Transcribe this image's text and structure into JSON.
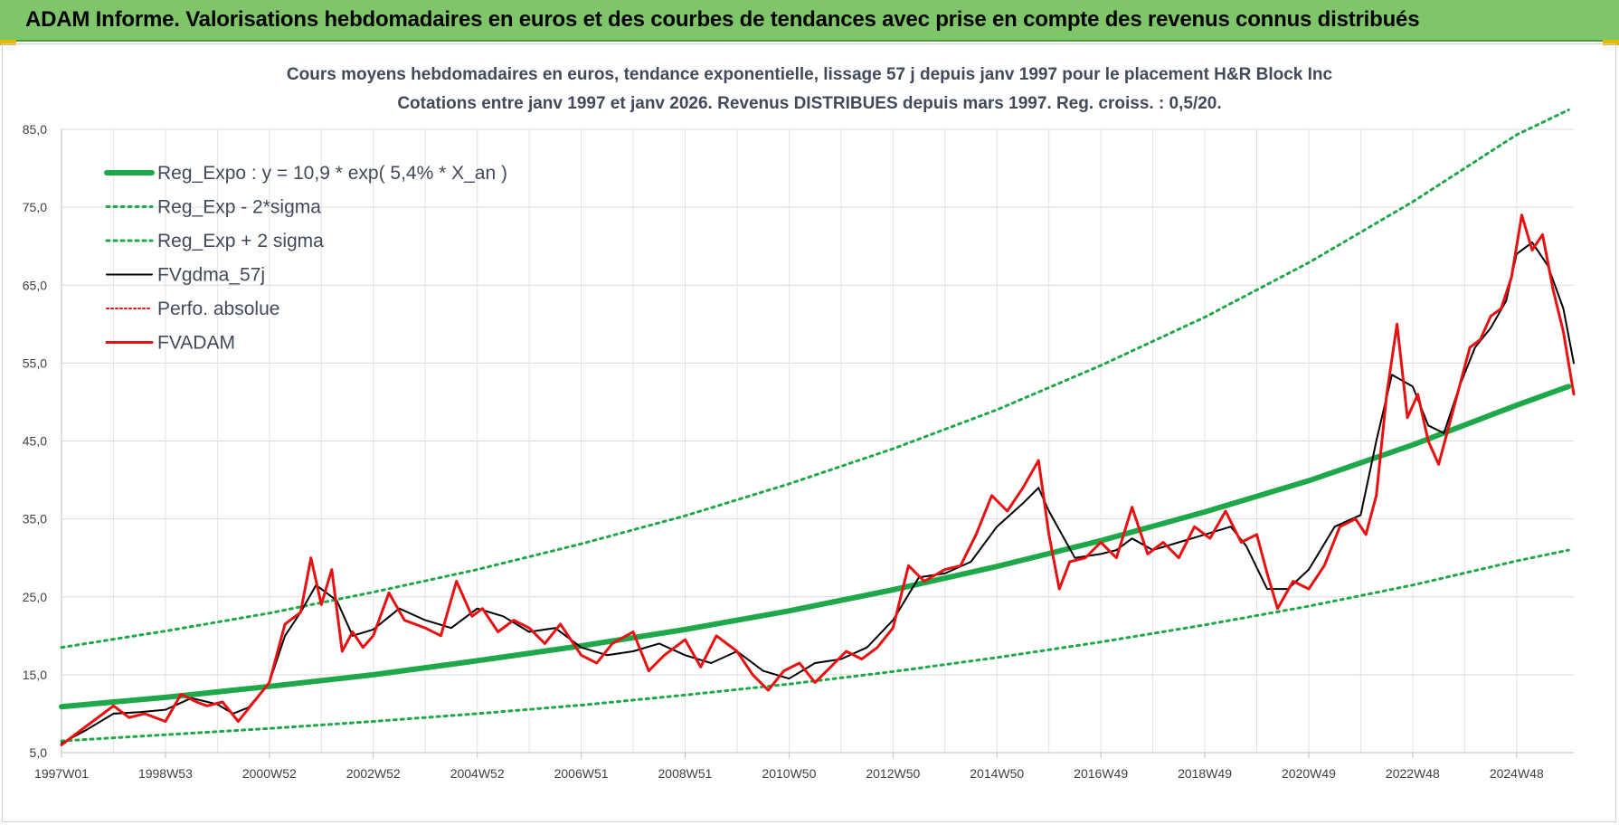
{
  "banner": {
    "title": "ADAM Informe. Valorisations hebdomadaires en euros et des courbes de tendances avec prise en compte des revenus connus distribués"
  },
  "chart_data": {
    "type": "line",
    "title": "Cours moyens hebdomadaires en euros, tendance exponentielle, lissage 57 j depuis janv 1997  pour le placement H&R Block Inc",
    "subtitle": "Cotations entre janv 1997 et janv 2026. Revenus DISTRIBUES depuis mars 1997.  Reg. croiss. : 0,5/20.",
    "xlabel": "",
    "ylabel": "",
    "xlim": [
      1997.0,
      2026.1
    ],
    "ylim": [
      5.0,
      85.0
    ],
    "grid": true,
    "legend_position": "top-left",
    "y_ticks": [
      "5,0",
      "15,0",
      "25,0",
      "35,0",
      "45,0",
      "55,0",
      "65,0",
      "75,0",
      "85,0"
    ],
    "x_ticks": [
      {
        "label": "1997W01",
        "x": 1997.0
      },
      {
        "label": "1998W53",
        "x": 1999.0
      },
      {
        "label": "2000W52",
        "x": 2001.0
      },
      {
        "label": "2002W52",
        "x": 2003.0
      },
      {
        "label": "2004W52",
        "x": 2005.0
      },
      {
        "label": "2006W51",
        "x": 2007.0
      },
      {
        "label": "2008W51",
        "x": 2009.0
      },
      {
        "label": "2010W50",
        "x": 2011.0
      },
      {
        "label": "2012W50",
        "x": 2013.0
      },
      {
        "label": "2014W50",
        "x": 2015.0
      },
      {
        "label": "2016W49",
        "x": 2017.0
      },
      {
        "label": "2018W49",
        "x": 2019.0
      },
      {
        "label": "2020W49",
        "x": 2021.0
      },
      {
        "label": "2022W48",
        "x": 2023.0
      },
      {
        "label": "2024W48",
        "x": 2025.0
      }
    ],
    "series": [
      {
        "name": "Reg_Expo : y = 10,9 * exp( 5,4% *  X_an )",
        "color": "#1fa84a",
        "style": "solid",
        "width": 6,
        "x": [
          1997.0,
          1999.0,
          2001.0,
          2003.0,
          2005.0,
          2007.0,
          2009.0,
          2011.0,
          2013.0,
          2015.0,
          2017.0,
          2019.0,
          2021.0,
          2023.0,
          2025.0,
          2026.0
        ],
        "values": [
          10.9,
          12.1,
          13.5,
          15.0,
          16.8,
          18.7,
          20.8,
          23.2,
          25.9,
          28.9,
          32.2,
          35.9,
          39.9,
          44.5,
          49.6,
          52.0
        ]
      },
      {
        "name": "Reg_Exp - 2*sigma",
        "color": "#1fa84a",
        "style": "dotted",
        "width": 3,
        "x": [
          1997.0,
          1999.0,
          2001.0,
          2003.0,
          2005.0,
          2007.0,
          2009.0,
          2011.0,
          2013.0,
          2015.0,
          2017.0,
          2019.0,
          2021.0,
          2023.0,
          2025.0,
          2026.0
        ],
        "values": [
          6.5,
          7.3,
          8.1,
          9.0,
          10.0,
          11.1,
          12.4,
          13.8,
          15.4,
          17.2,
          19.2,
          21.4,
          23.8,
          26.5,
          29.6,
          31.0
        ]
      },
      {
        "name": "Reg_Exp + 2 sigma",
        "color": "#1fa84a",
        "style": "dotted",
        "width": 3,
        "x": [
          1997.0,
          1999.0,
          2001.0,
          2003.0,
          2005.0,
          2007.0,
          2009.0,
          2011.0,
          2013.0,
          2015.0,
          2017.0,
          2019.0,
          2021.0,
          2023.0,
          2025.0,
          2026.0
        ],
        "values": [
          18.5,
          20.6,
          22.9,
          25.6,
          28.5,
          31.8,
          35.4,
          39.5,
          44.0,
          49.0,
          54.7,
          60.9,
          67.9,
          75.7,
          84.3,
          87.5
        ]
      },
      {
        "name": "FVgdma_57j",
        "color": "#000000",
        "style": "solid",
        "width": 2,
        "x": [
          1997.0,
          1997.5,
          1998.0,
          1998.5,
          1999.0,
          1999.5,
          2000.0,
          2000.3,
          2000.6,
          2001.0,
          2001.3,
          2001.6,
          2001.9,
          2002.3,
          2002.6,
          2003.0,
          2003.5,
          2004.0,
          2004.5,
          2005.0,
          2005.5,
          2006.0,
          2006.5,
          2007.0,
          2007.5,
          2008.0,
          2008.5,
          2009.0,
          2009.5,
          2010.0,
          2010.5,
          2011.0,
          2011.5,
          2012.0,
          2012.5,
          2013.0,
          2013.5,
          2014.0,
          2014.5,
          2015.0,
          2015.5,
          2015.8,
          2016.0,
          2016.5,
          2017.0,
          2017.3,
          2017.6,
          2018.0,
          2018.5,
          2019.0,
          2019.5,
          2019.8,
          2020.2,
          2020.6,
          2021.0,
          2021.5,
          2022.0,
          2022.3,
          2022.6,
          2023.0,
          2023.3,
          2023.6,
          2023.9,
          2024.2,
          2024.5,
          2024.8,
          2025.0,
          2025.3,
          2025.6,
          2025.9,
          2026.1
        ],
        "values": [
          6.2,
          8.0,
          10.0,
          10.2,
          10.5,
          12.0,
          11.2,
          10.0,
          10.8,
          14.0,
          20.0,
          23.0,
          26.5,
          24.5,
          20.0,
          20.8,
          23.5,
          22.0,
          21.0,
          23.5,
          22.5,
          20.5,
          21.0,
          18.5,
          17.5,
          18.0,
          19.0,
          17.5,
          16.5,
          18.0,
          15.5,
          14.5,
          16.5,
          17.0,
          18.5,
          22.0,
          27.5,
          28.0,
          29.5,
          34.0,
          37.0,
          39.0,
          36.0,
          30.0,
          30.5,
          31.0,
          32.5,
          31.0,
          32.0,
          33.0,
          34.0,
          31.5,
          26.0,
          26.0,
          28.5,
          34.0,
          35.5,
          45.0,
          53.5,
          52.0,
          47.0,
          46.0,
          52.0,
          57.0,
          59.5,
          63.0,
          69.0,
          70.5,
          67.5,
          62.0,
          55.0
        ]
      },
      {
        "name": "Perfo. absolue",
        "color": "#e01010",
        "style": "dotted",
        "width": 2,
        "x": [],
        "values": []
      },
      {
        "name": "FVADAM",
        "color": "#e81010",
        "style": "solid",
        "width": 3,
        "x": [
          1997.0,
          1997.3,
          1997.6,
          1998.0,
          1998.3,
          1998.6,
          1999.0,
          1999.3,
          1999.6,
          1999.8,
          2000.1,
          2000.4,
          2000.7,
          2001.0,
          2001.3,
          2001.6,
          2001.8,
          2002.0,
          2002.2,
          2002.4,
          2002.6,
          2002.8,
          2003.0,
          2003.3,
          2003.6,
          2004.0,
          2004.3,
          2004.6,
          2004.9,
          2005.1,
          2005.4,
          2005.7,
          2006.0,
          2006.3,
          2006.6,
          2007.0,
          2007.3,
          2007.6,
          2008.0,
          2008.3,
          2008.6,
          2009.0,
          2009.3,
          2009.6,
          2010.0,
          2010.3,
          2010.6,
          2010.9,
          2011.2,
          2011.5,
          2011.8,
          2012.1,
          2012.4,
          2012.7,
          2013.0,
          2013.3,
          2013.6,
          2014.0,
          2014.3,
          2014.6,
          2014.9,
          2015.2,
          2015.5,
          2015.8,
          2016.0,
          2016.2,
          2016.4,
          2016.7,
          2017.0,
          2017.3,
          2017.6,
          2017.9,
          2018.2,
          2018.5,
          2018.8,
          2019.1,
          2019.4,
          2019.7,
          2020.0,
          2020.2,
          2020.4,
          2020.7,
          2021.0,
          2021.3,
          2021.6,
          2021.9,
          2022.1,
          2022.3,
          2022.5,
          2022.7,
          2022.9,
          2023.1,
          2023.3,
          2023.5,
          2023.7,
          2023.9,
          2024.1,
          2024.3,
          2024.5,
          2024.7,
          2024.9,
          2025.1,
          2025.3,
          2025.5,
          2025.7,
          2025.9,
          2026.1
        ],
        "values": [
          6.0,
          7.5,
          9.0,
          11.0,
          9.5,
          10.0,
          9.0,
          12.5,
          11.5,
          11.0,
          11.5,
          9.0,
          11.5,
          14.0,
          21.5,
          23.0,
          30.0,
          24.0,
          28.5,
          18.0,
          20.5,
          18.5,
          20.0,
          25.5,
          22.0,
          21.0,
          20.0,
          27.0,
          22.5,
          23.5,
          20.5,
          22.0,
          21.0,
          19.0,
          21.5,
          17.5,
          16.5,
          19.0,
          20.5,
          15.5,
          17.5,
          19.5,
          16.0,
          20.0,
          18.0,
          15.0,
          13.0,
          15.5,
          16.5,
          14.0,
          16.0,
          18.0,
          17.0,
          18.5,
          21.0,
          29.0,
          27.0,
          28.5,
          29.0,
          33.0,
          38.0,
          36.0,
          39.0,
          42.5,
          33.0,
          26.0,
          29.5,
          30.0,
          32.0,
          30.0,
          36.5,
          30.5,
          32.0,
          30.0,
          34.0,
          32.5,
          36.0,
          32.0,
          33.0,
          28.0,
          23.5,
          27.0,
          26.0,
          29.0,
          34.0,
          35.0,
          33.0,
          38.0,
          51.0,
          60.0,
          48.0,
          51.0,
          45.0,
          42.0,
          47.0,
          52.0,
          57.0,
          58.0,
          61.0,
          62.0,
          66.0,
          74.0,
          69.5,
          71.5,
          64.5,
          59.0,
          51.0
        ]
      }
    ]
  }
}
